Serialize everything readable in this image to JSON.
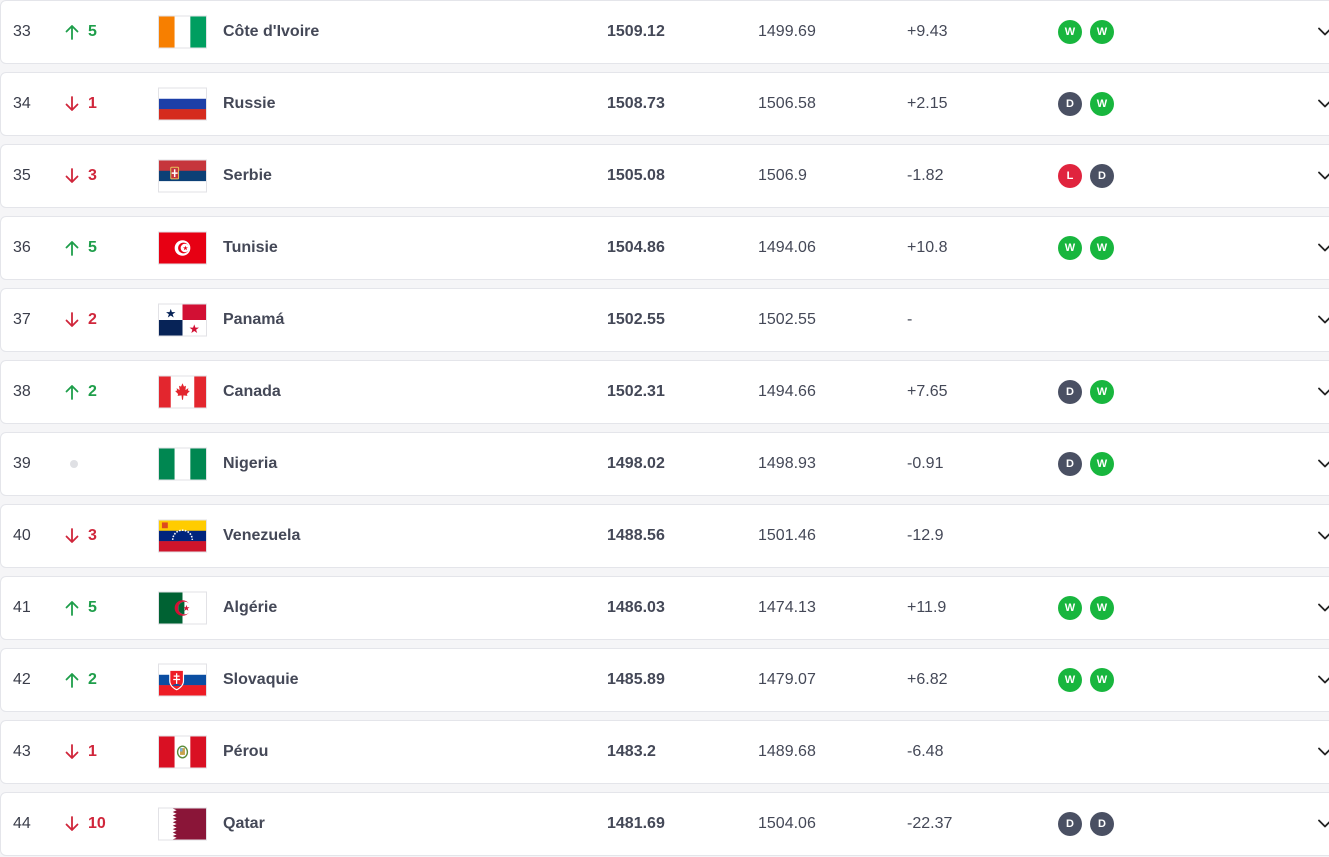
{
  "colors": {
    "up": "#1e9e4a",
    "down": "#d0263b",
    "win": "#18b63e",
    "draw": "#4a5063",
    "loss": "#e0243e"
  },
  "rows": [
    {
      "rank": "33",
      "trend": "up",
      "change": "5",
      "flag": "civ",
      "name": "Côte d'Ivoire",
      "points": "1509.12",
      "prev_points": "1499.69",
      "diff": "+9.43",
      "results": [
        "W",
        "W"
      ]
    },
    {
      "rank": "34",
      "trend": "down",
      "change": "1",
      "flag": "rus",
      "name": "Russie",
      "points": "1508.73",
      "prev_points": "1506.58",
      "diff": "+2.15",
      "results": [
        "D",
        "W"
      ]
    },
    {
      "rank": "35",
      "trend": "down",
      "change": "3",
      "flag": "srb",
      "name": "Serbie",
      "points": "1505.08",
      "prev_points": "1506.9",
      "diff": "-1.82",
      "results": [
        "L",
        "D"
      ]
    },
    {
      "rank": "36",
      "trend": "up",
      "change": "5",
      "flag": "tun",
      "name": "Tunisie",
      "points": "1504.86",
      "prev_points": "1494.06",
      "diff": "+10.8",
      "results": [
        "W",
        "W"
      ]
    },
    {
      "rank": "37",
      "trend": "down",
      "change": "2",
      "flag": "pan",
      "name": "Panamá",
      "points": "1502.55",
      "prev_points": "1502.55",
      "diff": "-",
      "results": []
    },
    {
      "rank": "38",
      "trend": "up",
      "change": "2",
      "flag": "can",
      "name": "Canada",
      "points": "1502.31",
      "prev_points": "1494.66",
      "diff": "+7.65",
      "results": [
        "D",
        "W"
      ]
    },
    {
      "rank": "39",
      "trend": "none",
      "change": "",
      "flag": "nga",
      "name": "Nigeria",
      "points": "1498.02",
      "prev_points": "1498.93",
      "diff": "-0.91",
      "results": [
        "D",
        "W"
      ]
    },
    {
      "rank": "40",
      "trend": "down",
      "change": "3",
      "flag": "ven",
      "name": "Venezuela",
      "points": "1488.56",
      "prev_points": "1501.46",
      "diff": "-12.9",
      "results": []
    },
    {
      "rank": "41",
      "trend": "up",
      "change": "5",
      "flag": "alg",
      "name": "Algérie",
      "points": "1486.03",
      "prev_points": "1474.13",
      "diff": "+11.9",
      "results": [
        "W",
        "W"
      ]
    },
    {
      "rank": "42",
      "trend": "up",
      "change": "2",
      "flag": "svk",
      "name": "Slovaquie",
      "points": "1485.89",
      "prev_points": "1479.07",
      "diff": "+6.82",
      "results": [
        "W",
        "W"
      ]
    },
    {
      "rank": "43",
      "trend": "down",
      "change": "1",
      "flag": "per",
      "name": "Pérou",
      "points": "1483.2",
      "prev_points": "1489.68",
      "diff": "-6.48",
      "results": []
    },
    {
      "rank": "44",
      "trend": "down",
      "change": "10",
      "flag": "qat",
      "name": "Qatar",
      "points": "1481.69",
      "prev_points": "1504.06",
      "diff": "-22.37",
      "results": [
        "D",
        "D"
      ]
    }
  ]
}
